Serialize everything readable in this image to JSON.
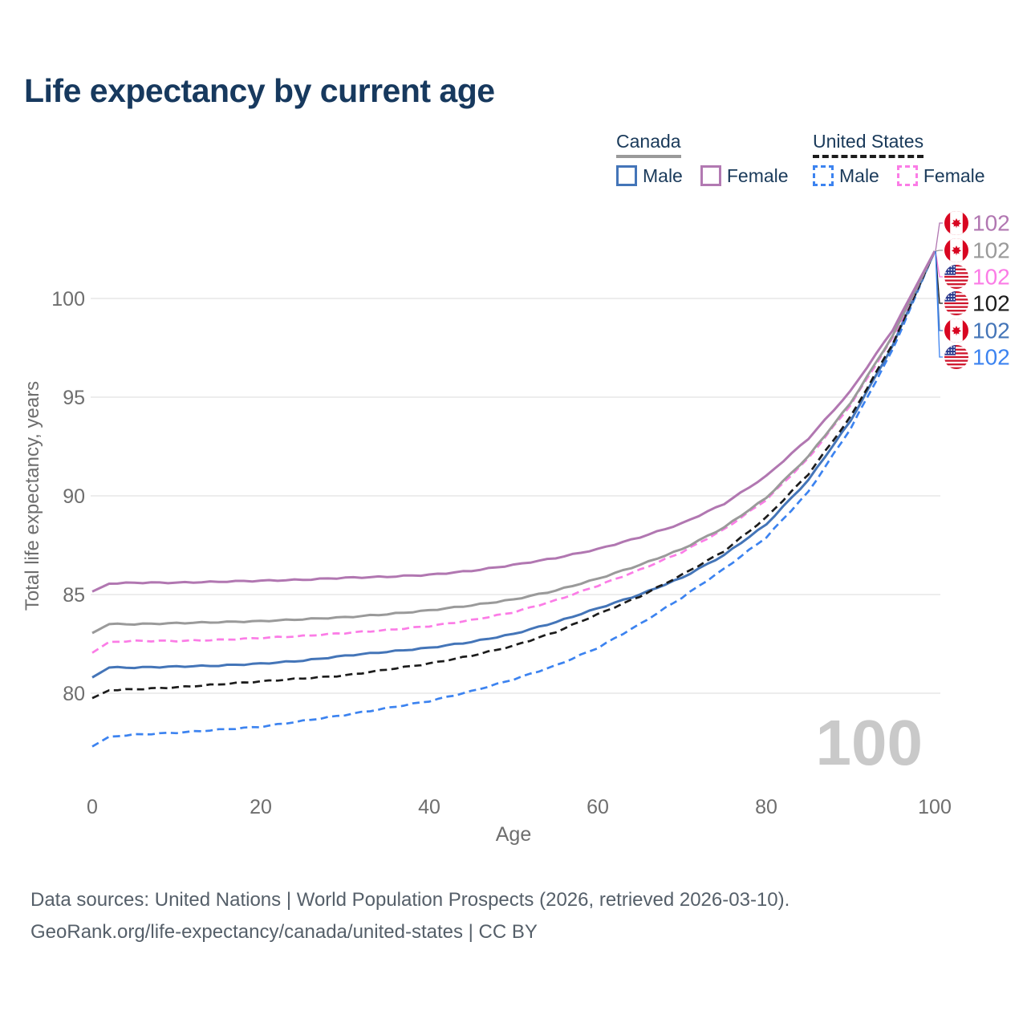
{
  "title": "Life expectancy by current age",
  "legend": {
    "groups": [
      {
        "label": "Canada",
        "line_style": "solid",
        "rule_color": "#9a9a9a",
        "items": [
          {
            "label": "Male",
            "color": "#4475b8"
          },
          {
            "label": "Female",
            "color": "#b279b2"
          }
        ]
      },
      {
        "label": "United States",
        "line_style": "dashed",
        "rule_color": "#1c1c1c",
        "items": [
          {
            "label": "Male",
            "color": "#3c83f0"
          },
          {
            "label": "Female",
            "color": "#fb7ce6"
          }
        ]
      }
    ]
  },
  "chart_data": {
    "type": "line",
    "title": "Life expectancy by current age",
    "xlabel": "Age",
    "ylabel": "Total life expectancy, years",
    "x_ticks": [
      0,
      20,
      40,
      60,
      80,
      100
    ],
    "y_ticks": [
      80,
      85,
      90,
      95,
      100
    ],
    "xlim": [
      0,
      100
    ],
    "ylim": [
      76,
      103.5
    ],
    "grid": "horizontal-only",
    "legend_position": "top-right",
    "age_counter_watermark": "100",
    "x": [
      0,
      2,
      5,
      10,
      15,
      20,
      25,
      30,
      35,
      40,
      45,
      50,
      55,
      60,
      65,
      70,
      75,
      80,
      85,
      90,
      95,
      100
    ],
    "series": [
      {
        "name": "Canada Female",
        "country": "canada",
        "color": "#b177b1",
        "dash": false,
        "end_label": "102",
        "values": [
          85.15,
          85.55,
          85.6,
          85.6,
          85.65,
          85.7,
          85.75,
          85.85,
          85.9,
          86.0,
          86.2,
          86.5,
          86.85,
          87.3,
          87.9,
          88.6,
          89.6,
          91.0,
          92.9,
          95.3,
          98.4,
          102.4
        ]
      },
      {
        "name": "Canada",
        "country": "canada",
        "color": "#9a9a9a",
        "dash": false,
        "end_label": "102",
        "values": [
          83.05,
          83.5,
          83.5,
          83.55,
          83.6,
          83.65,
          83.75,
          83.85,
          84.0,
          84.2,
          84.45,
          84.75,
          85.2,
          85.8,
          86.5,
          87.3,
          88.4,
          89.9,
          92.0,
          94.7,
          98.1,
          102.4
        ]
      },
      {
        "name": "United States Female",
        "country": "us",
        "color": "#fb7ce6",
        "dash": true,
        "end_label": "102",
        "values": [
          82.05,
          82.6,
          82.65,
          82.65,
          82.7,
          82.8,
          82.9,
          83.05,
          83.2,
          83.4,
          83.7,
          84.1,
          84.7,
          85.45,
          86.25,
          87.15,
          88.3,
          89.8,
          91.9,
          94.6,
          98.0,
          102.4
        ]
      },
      {
        "name": "United States",
        "country": "us",
        "color": "#1c1c1c",
        "dash": true,
        "end_label": "102",
        "values": [
          79.75,
          80.15,
          80.2,
          80.3,
          80.45,
          80.6,
          80.75,
          80.9,
          81.2,
          81.5,
          81.9,
          82.4,
          83.1,
          84.0,
          84.9,
          86.0,
          87.2,
          88.9,
          91.1,
          94.0,
          97.7,
          102.4
        ]
      },
      {
        "name": "Canada Male",
        "country": "canada",
        "color": "#4475b8",
        "dash": false,
        "end_label": "102",
        "values": [
          80.8,
          81.3,
          81.3,
          81.35,
          81.4,
          81.5,
          81.65,
          81.9,
          82.1,
          82.3,
          82.6,
          83.0,
          83.6,
          84.3,
          85.0,
          85.85,
          87.0,
          88.55,
          90.8,
          93.8,
          97.6,
          102.4
        ]
      },
      {
        "name": "United States Male",
        "country": "us",
        "color": "#3c83f0",
        "dash": true,
        "end_label": "102",
        "values": [
          77.3,
          77.8,
          77.9,
          78.0,
          78.15,
          78.3,
          78.6,
          78.9,
          79.25,
          79.6,
          80.1,
          80.7,
          81.4,
          82.3,
          83.5,
          84.85,
          86.3,
          87.9,
          90.2,
          93.4,
          97.4,
          102.4
        ]
      }
    ],
    "end_label_order_top_to_bottom": [
      "Canada Female",
      "Canada",
      "United States Female",
      "United States",
      "Canada Male",
      "United States Male"
    ]
  },
  "footer": {
    "line1": "Data sources: United Nations | World Population Prospects (2026, retrieved 2026-03-10).",
    "line2": "GeoRank.org/life-expectancy/canada/united-states | CC BY"
  }
}
